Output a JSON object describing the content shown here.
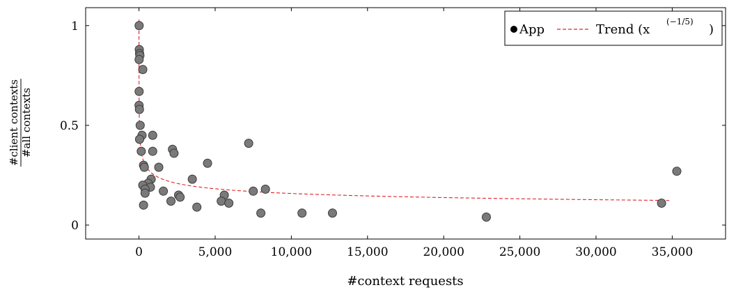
{
  "chart_data": {
    "type": "scatter",
    "xlabel": "#context requests",
    "ylabel_numerator": "#client contexts",
    "ylabel_denominator": "#all contexts",
    "xlim": [
      -3500,
      38500
    ],
    "ylim": [
      -0.07,
      1.09
    ],
    "x_ticks": [
      0,
      5000,
      10000,
      15000,
      20000,
      25000,
      30000,
      35000
    ],
    "x_tick_labels": [
      "0",
      "5,000",
      "10,000",
      "15,000",
      "20,000",
      "25,000",
      "30,000",
      "35,000"
    ],
    "y_ticks": [
      0,
      0.5,
      1
    ],
    "y_tick_labels": [
      "0",
      "0.5",
      "1"
    ],
    "legend": {
      "position": "top-right",
      "entries": [
        {
          "label": "App",
          "marker": "circle"
        },
        {
          "label": "Trend (x",
          "exponent": "(−1/5)",
          "suffix": ")",
          "line": "dashed"
        }
      ]
    },
    "series": [
      {
        "name": "App",
        "color": "#7a7a7a",
        "points": [
          [
            10,
            1.0
          ],
          [
            20,
            0.88
          ],
          [
            40,
            0.86
          ],
          [
            60,
            0.85
          ],
          [
            10,
            0.83
          ],
          [
            250,
            0.78
          ],
          [
            10,
            0.67
          ],
          [
            5,
            0.6
          ],
          [
            30,
            0.58
          ],
          [
            80,
            0.5
          ],
          [
            900,
            0.45
          ],
          [
            200,
            0.45
          ],
          [
            40,
            0.43
          ],
          [
            150,
            0.37
          ],
          [
            900,
            0.37
          ],
          [
            2200,
            0.38
          ],
          [
            2300,
            0.36
          ],
          [
            300,
            0.3
          ],
          [
            350,
            0.29
          ],
          [
            1300,
            0.29
          ],
          [
            4500,
            0.31
          ],
          [
            7200,
            0.41
          ],
          [
            3500,
            0.23
          ],
          [
            800,
            0.23
          ],
          [
            600,
            0.21
          ],
          [
            250,
            0.2
          ],
          [
            750,
            0.19
          ],
          [
            400,
            0.18
          ],
          [
            1600,
            0.17
          ],
          [
            400,
            0.16
          ],
          [
            2600,
            0.15
          ],
          [
            2700,
            0.14
          ],
          [
            5600,
            0.15
          ],
          [
            7500,
            0.17
          ],
          [
            8300,
            0.18
          ],
          [
            2100,
            0.12
          ],
          [
            5400,
            0.12
          ],
          [
            5900,
            0.11
          ],
          [
            300,
            0.1
          ],
          [
            3800,
            0.09
          ],
          [
            8000,
            0.06
          ],
          [
            10700,
            0.06
          ],
          [
            12700,
            0.06
          ],
          [
            22800,
            0.04
          ],
          [
            34300,
            0.11
          ],
          [
            35300,
            0.27
          ]
        ]
      },
      {
        "name": "Trend",
        "color": "#e0202c",
        "style": "dashed",
        "function": "power",
        "exponent": -0.2,
        "x_range": [
          0.86,
          34800
        ]
      }
    ]
  }
}
